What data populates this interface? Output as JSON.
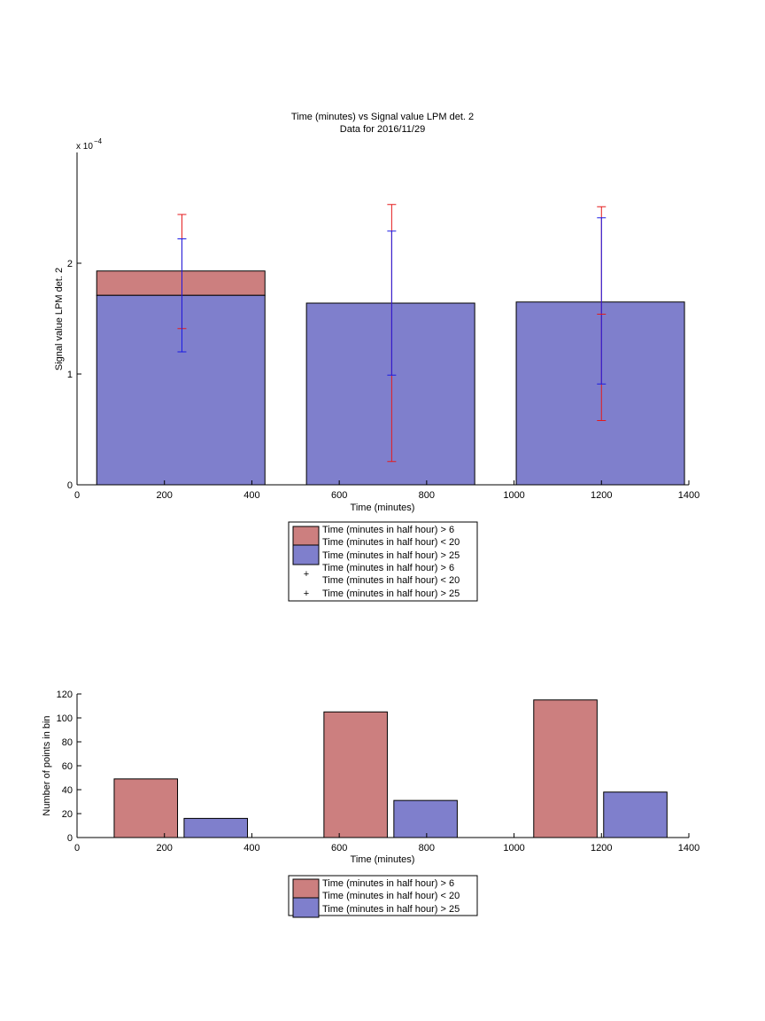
{
  "colors": {
    "series_a": "#cc7f7f",
    "series_b": "#7f7fcc",
    "err_a": "#e41a1c",
    "err_b": "#1a1ae4",
    "axis": "#000000"
  },
  "chart_data": [
    {
      "type": "bar",
      "title": "Time (minutes) vs Signal value LPM det. 2",
      "subtitle": "Data for 2016/11/29",
      "xlabel": "Time (minutes)",
      "ylabel": "Signal value LPM det. 2",
      "y_exponent_label": "x 10",
      "y_exponent_power": "−4",
      "xlim": [
        0,
        1400
      ],
      "ylim": [
        0,
        3
      ],
      "y_unit_scale": "1e-4",
      "xticks": [
        "0",
        "200",
        "400",
        "600",
        "800",
        "1000",
        "1200",
        "1400"
      ],
      "yticks": [
        "0",
        "1",
        "2"
      ],
      "grid": false,
      "bars": [
        {
          "x0": 45,
          "x1": 430,
          "series_a": 1.93,
          "series_b": 1.71
        },
        {
          "x0": 525,
          "x1": 910,
          "series_a": 1.64,
          "series_b": 1.64
        },
        {
          "x0": 1005,
          "x1": 1390,
          "series_a": 1.65,
          "series_b": 1.65
        }
      ],
      "errorbars": [
        {
          "series": "a",
          "x": 240,
          "low": 1.41,
          "high": 2.44
        },
        {
          "series": "b",
          "x": 240,
          "low": 1.2,
          "high": 2.22
        },
        {
          "series": "a",
          "x": 720,
          "low": 0.21,
          "high": 2.53
        },
        {
          "series": "b",
          "x": 720,
          "low": 0.99,
          "high": 2.29
        },
        {
          "series": "a",
          "x": 1200,
          "low": 0.58,
          "high": 2.51
        },
        {
          "series": "b",
          "x": 1200,
          "low": 0.91,
          "high": 2.41
        },
        {
          "series": "a",
          "x": 1200,
          "low": 1.54,
          "high": 1.54
        }
      ],
      "legend": {
        "placement": "below",
        "entries": [
          "Time (minutes in half hour) > 6",
          "Time (minutes in half hour) < 20",
          "Time (minutes in half hour) > 25",
          "Time (minutes in half hour) > 6",
          "Time (minutes in half hour) < 20",
          "Time (minutes in half hour) > 25"
        ]
      }
    },
    {
      "type": "bar",
      "xlabel": "Time (minutes)",
      "ylabel": "Number of points in bin",
      "xlim": [
        0,
        1400
      ],
      "ylim": [
        0,
        120
      ],
      "xticks": [
        "0",
        "200",
        "400",
        "600",
        "800",
        "1000",
        "1200",
        "1400"
      ],
      "yticks": [
        "0",
        "20",
        "40",
        "60",
        "80",
        "100",
        "120"
      ],
      "grid": false,
      "bars": [
        {
          "series": "a",
          "x0": 85,
          "x1": 230,
          "value": 49
        },
        {
          "series": "b",
          "x0": 245,
          "x1": 390,
          "value": 16
        },
        {
          "series": "a",
          "x0": 565,
          "x1": 710,
          "value": 105
        },
        {
          "series": "b",
          "x0": 725,
          "x1": 870,
          "value": 31
        },
        {
          "series": "a",
          "x0": 1045,
          "x1": 1190,
          "value": 115
        },
        {
          "series": "b",
          "x0": 1205,
          "x1": 1350,
          "value": 38
        }
      ],
      "legend": {
        "placement": "below",
        "entries": [
          "Time (minutes in half hour) > 6",
          "Time (minutes in half hour) < 20",
          "Time (minutes in half hour) > 25"
        ]
      }
    }
  ]
}
